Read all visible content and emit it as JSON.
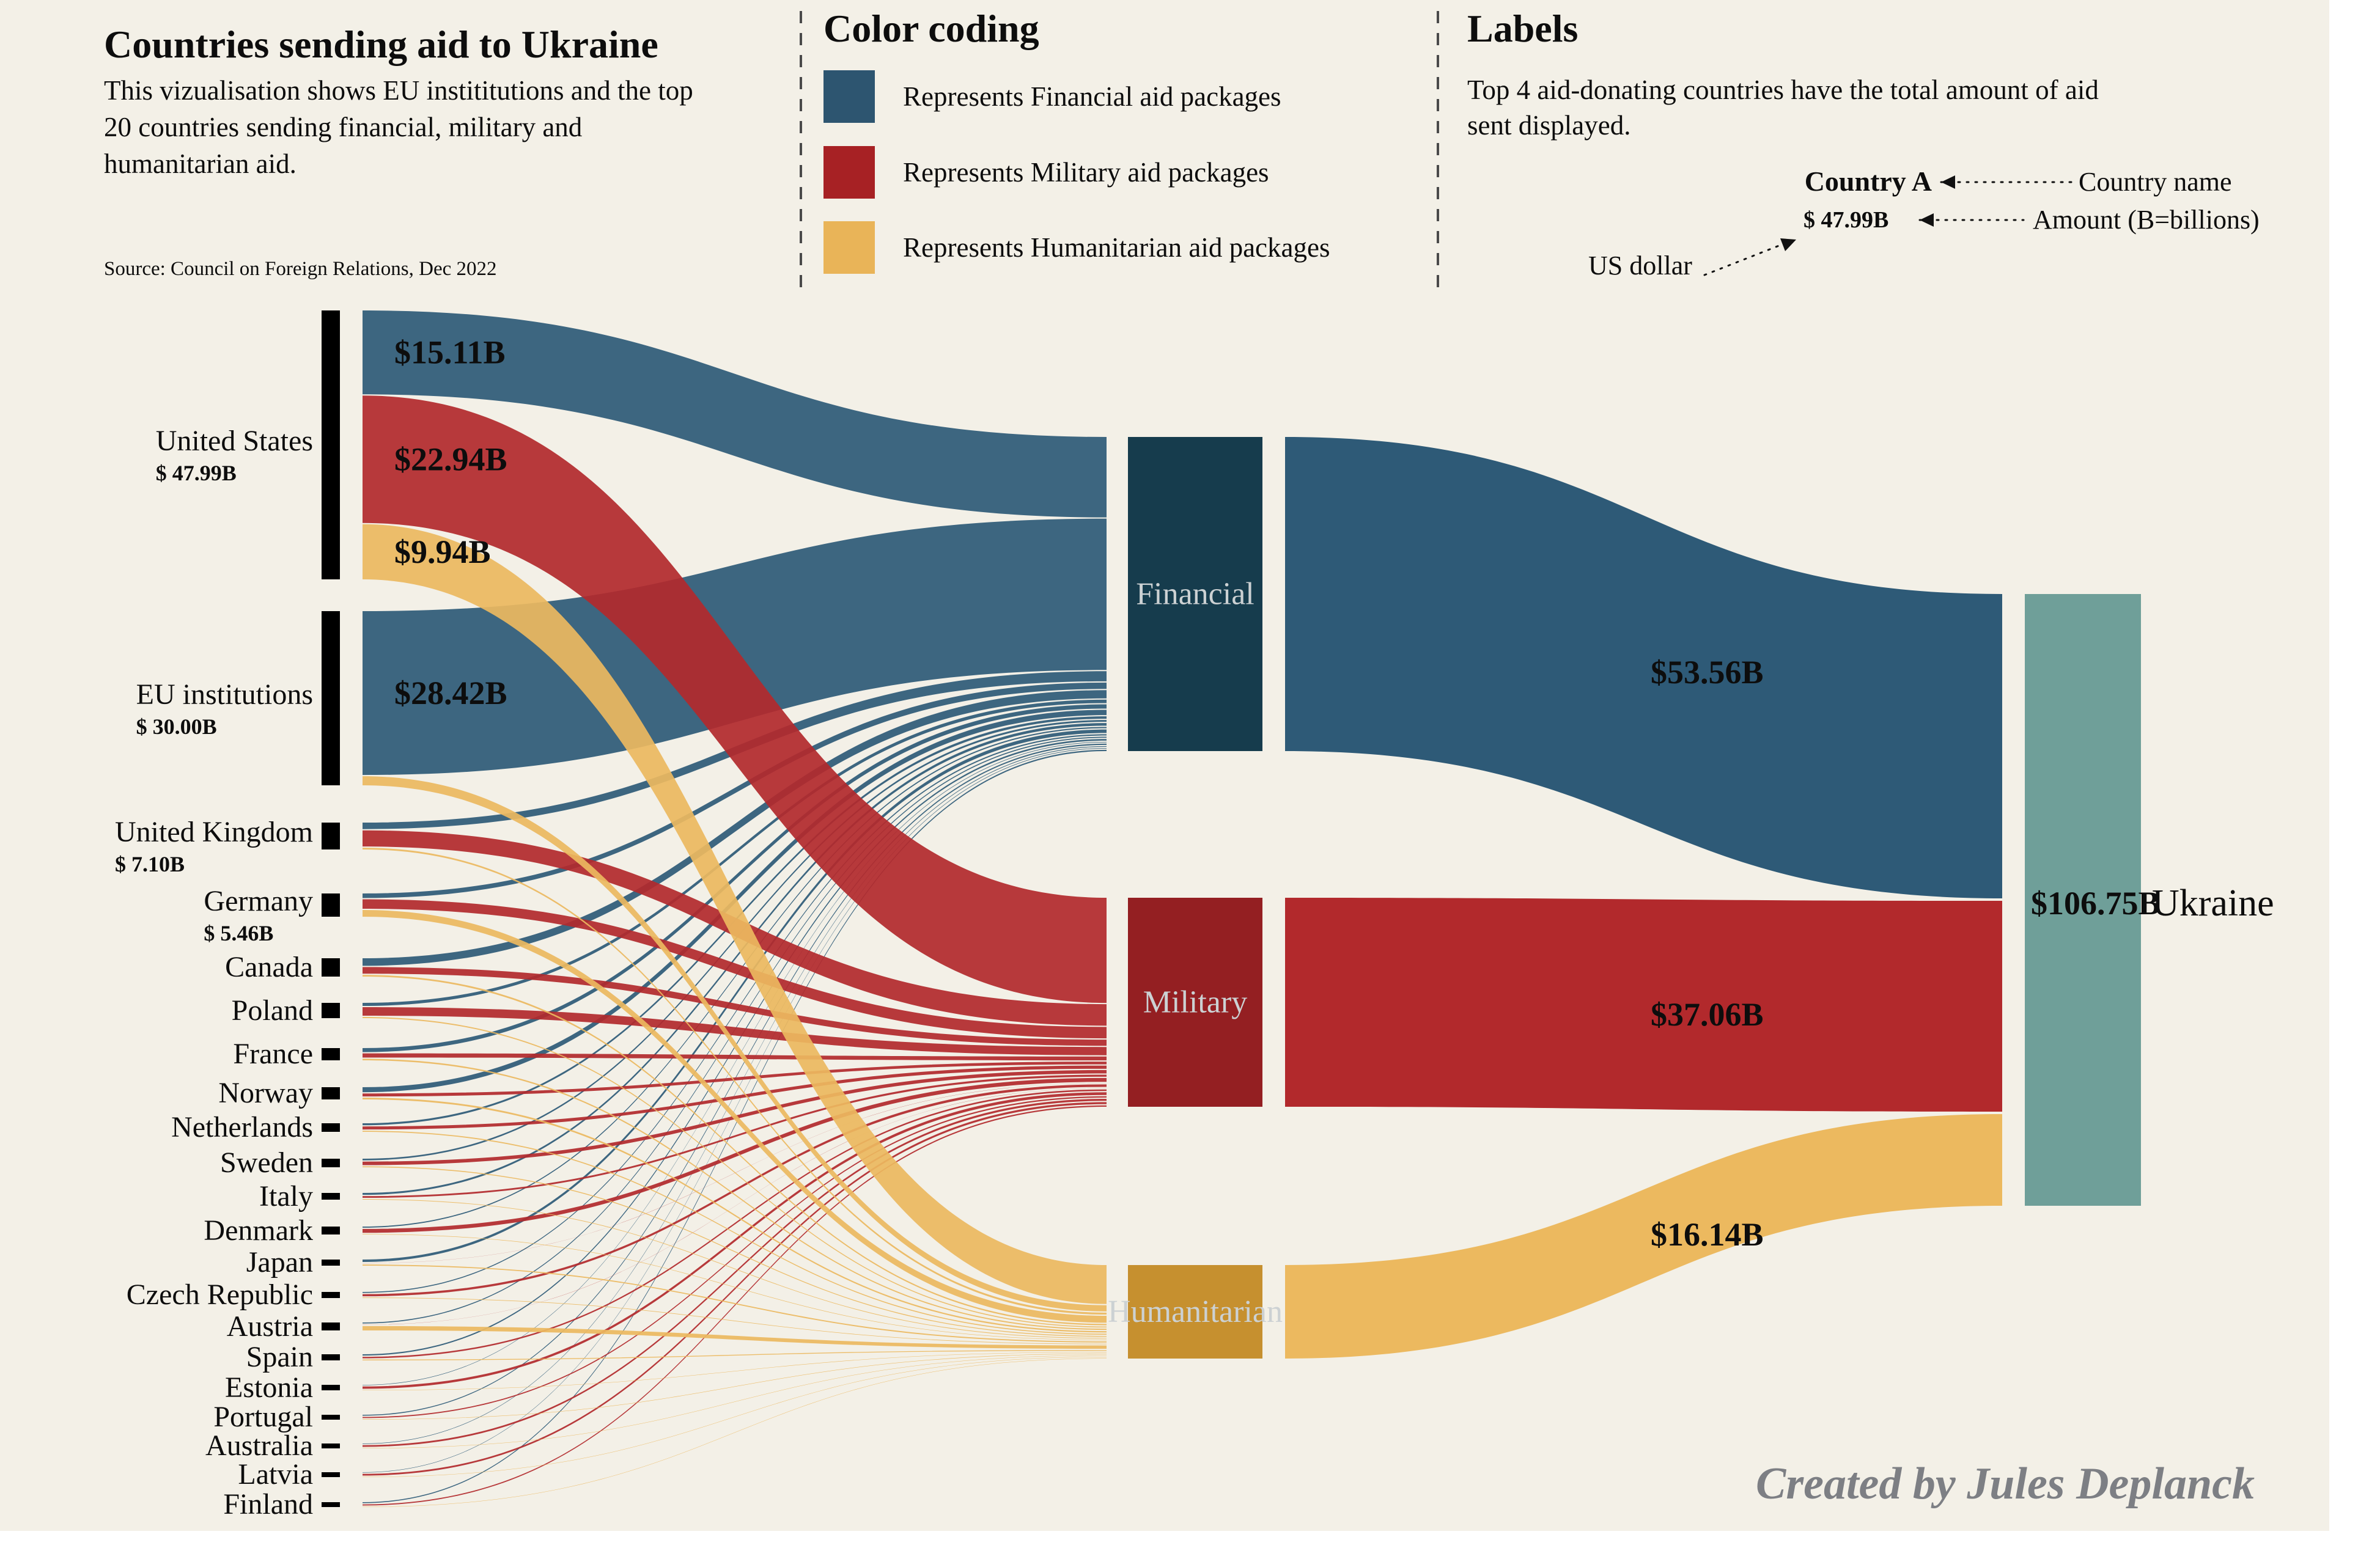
{
  "header": {
    "title": "Countries sending aid to Ukraine",
    "subtitle_lines": [
      "This vizualisation shows EU instititutions and the top",
      "20 countries sending financial, military and",
      "humanitarian aid."
    ],
    "source": "Source: Council on Foreign Relations, Dec 2022"
  },
  "legend": {
    "heading": "Color coding",
    "items": [
      {
        "name": "financial",
        "label": "Represents Financial aid packages",
        "color": "#2d5570"
      },
      {
        "name": "military",
        "label": "Represents Military aid packages",
        "color": "#a72124"
      },
      {
        "name": "humanitarian",
        "label": "Represents Humanitarian aid packages",
        "color": "#e9b458"
      }
    ]
  },
  "labels_guide": {
    "heading": "Labels",
    "description_lines": [
      "Top 4 aid-donating countries have the total amount of aid",
      "sent displayed."
    ],
    "example": {
      "country_label": "Country A",
      "amount_label": "$ 47.99B",
      "country_callout": "Country name",
      "amount_callout": "Amount (B=billions)",
      "currency_callout": "US dollar"
    }
  },
  "chart_data": {
    "type": "sankey",
    "unit": "USD billions (B=billions)",
    "flow_colors": {
      "financial": "#2e5a77",
      "military": "#b2292c",
      "humanitarian": "#ecb95f"
    },
    "node_colors": {
      "country_bar": "#000000",
      "financial_box": "#163c4d",
      "military_box": "#941f22",
      "humanitarian_box": "#c6902f",
      "ukraine_bar": "#6f9f99"
    },
    "categories": [
      {
        "name": "Financial",
        "total_label": "$53.56B",
        "total_b": 53.56
      },
      {
        "name": "Military",
        "total_label": "$37.06B",
        "total_b": 37.06
      },
      {
        "name": "Humanitarian",
        "total_label": "$16.14B",
        "total_b": 16.14
      }
    ],
    "destination": {
      "name": "Ukraine",
      "total_label": "$106.75B",
      "total_b": 106.75
    },
    "sources": [
      {
        "name": "United States",
        "total_label": "$ 47.99B",
        "financial_b": 15.11,
        "military_b": 22.94,
        "humanitarian_b": 9.94,
        "flow_labels": {
          "financial": "$15.11B",
          "military": "$22.94B",
          "humanitarian": "$9.94B"
        }
      },
      {
        "name": "EU institutions",
        "total_label": "$ 30.00B",
        "financial_b": 28.42,
        "military_b": 0,
        "humanitarian_b": 1.58,
        "flow_labels": {
          "financial": "$28.42B"
        }
      },
      {
        "name": "United Kingdom",
        "total_label": "$ 7.10B",
        "financial_b": 1.9,
        "military_b": 4.7,
        "humanitarian_b": 0.5,
        "approx_split": true
      },
      {
        "name": "Germany",
        "total_label": "$ 5.46B",
        "financial_b": 1.2,
        "military_b": 2.5,
        "humanitarian_b": 1.76,
        "approx_split": true
      },
      {
        "name": "Canada",
        "financial_b": 1.55,
        "military_b": 1.35,
        "humanitarian_b": 0.35,
        "approx": true
      },
      {
        "name": "Poland",
        "financial_b": 0.65,
        "military_b": 1.8,
        "humanitarian_b": 0.25,
        "approx": true
      },
      {
        "name": "France",
        "financial_b": 0.8,
        "military_b": 0.85,
        "humanitarian_b": 0.3,
        "approx": true
      },
      {
        "name": "Norway",
        "financial_b": 1.0,
        "military_b": 0.6,
        "humanitarian_b": 0.35,
        "approx": true
      },
      {
        "name": "Netherlands",
        "financial_b": 0.45,
        "military_b": 0.7,
        "humanitarian_b": 0.25,
        "approx": true
      },
      {
        "name": "Sweden",
        "financial_b": 0.35,
        "military_b": 0.75,
        "humanitarian_b": 0.2,
        "approx": true
      },
      {
        "name": "Italy",
        "financial_b": 0.5,
        "military_b": 0.45,
        "humanitarian_b": 0.15,
        "approx": true
      },
      {
        "name": "Denmark",
        "financial_b": 0.25,
        "military_b": 0.85,
        "humanitarian_b": 0.1,
        "approx": true
      },
      {
        "name": "Japan",
        "financial_b": 0.65,
        "military_b": 0.02,
        "humanitarian_b": 0.3,
        "approx": true
      },
      {
        "name": "Czech Republic",
        "financial_b": 0.25,
        "military_b": 0.55,
        "humanitarian_b": 0.13,
        "approx": true
      },
      {
        "name": "Austria",
        "financial_b": 0.2,
        "military_b": 0.02,
        "humanitarian_b": 0.85,
        "approx": true
      },
      {
        "name": "Spain",
        "financial_b": 0.3,
        "military_b": 0.35,
        "humanitarian_b": 0.2,
        "approx": true
      },
      {
        "name": "Estonia",
        "financial_b": 0.1,
        "military_b": 0.6,
        "humanitarian_b": 0.08,
        "approx": true
      },
      {
        "name": "Portugal",
        "financial_b": 0.25,
        "military_b": 0.3,
        "humanitarian_b": 0.1,
        "approx": true
      },
      {
        "name": "Australia",
        "financial_b": 0.12,
        "military_b": 0.45,
        "humanitarian_b": 0.08,
        "approx": true
      },
      {
        "name": "Latvia",
        "financial_b": 0.1,
        "military_b": 0.45,
        "humanitarian_b": 0.08,
        "approx": true
      },
      {
        "name": "Finland",
        "financial_b": 0.25,
        "military_b": 0.3,
        "humanitarian_b": 0.08,
        "approx": true
      }
    ]
  },
  "credit": "Created by Jules Deplanck"
}
